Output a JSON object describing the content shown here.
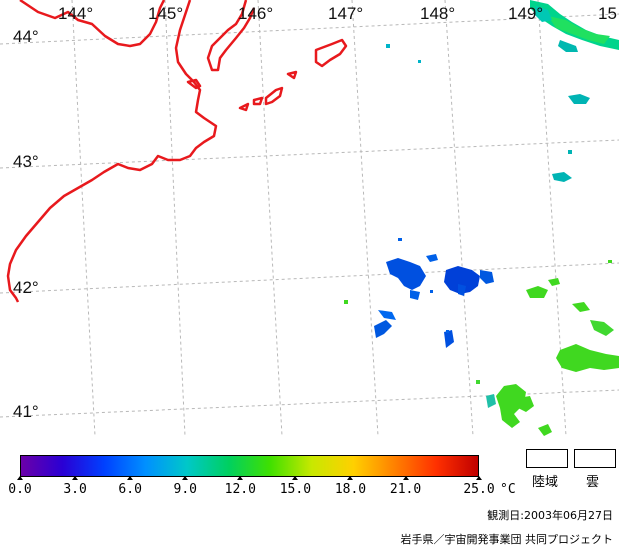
{
  "map": {
    "longitude_labels": [
      "144°",
      "145°",
      "146°",
      "147°",
      "148°",
      "149°",
      "15"
    ],
    "latitude_labels": [
      "44°",
      "43°",
      "42°",
      "41°"
    ],
    "coastline_color": "#e8191d",
    "grid_color": "#b0b0b0"
  },
  "colorbar": {
    "min": 0.0,
    "max": 25.0,
    "tick_labels": [
      "0.0",
      "3.0",
      "6.0",
      "9.0",
      "12.0",
      "15.0",
      "18.0",
      "21.0",
      "25.0"
    ],
    "tick_values": [
      0,
      3,
      6,
      9,
      12,
      15,
      18,
      21,
      25
    ],
    "unit": "°C",
    "colors": [
      "#6b00a8",
      "#2a00d4",
      "#0040ff",
      "#0090ff",
      "#00c8c8",
      "#00d060",
      "#40e000",
      "#c8e800",
      "#ffd000",
      "#ff8000",
      "#ff3000",
      "#c00000"
    ]
  },
  "legend": {
    "land_label": "陸域",
    "cloud_label": "雲"
  },
  "footer": {
    "observation_date": "観測日:2003年06月27日",
    "credit": "岩手県／宇宙開発事業団 共同プロジェクト"
  }
}
